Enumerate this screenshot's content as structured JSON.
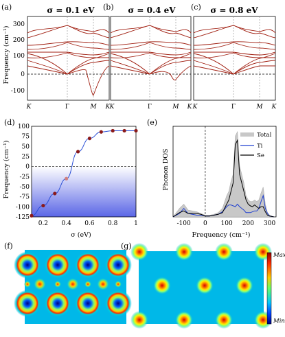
{
  "figure": {
    "panel_labels": [
      "(a)",
      "(b)",
      "(c)",
      "(d)",
      "(e)",
      "(f)",
      "(g)"
    ],
    "phonon_ylabel": "Frequency (cm⁻¹)",
    "phonon_yticks": [
      "300",
      "200",
      "100",
      "0",
      "-100"
    ],
    "kpoints": [
      "K",
      "Γ",
      "M",
      "K"
    ],
    "sigma_titles": [
      "σ = 0.1 eV",
      "σ = 0.4 eV",
      "σ = 0.8 eV"
    ],
    "d_ylabel": "Frequency (cm⁻¹)",
    "d_xlabel": "σ  (eV)",
    "d_xticks": [
      "0.2",
      "0.4",
      "0.6",
      "0.8",
      "1"
    ],
    "d_yticks": [
      "100",
      "75",
      "50",
      "25",
      "0",
      "-25",
      "-50",
      "-75",
      "-100",
      "-125"
    ],
    "e_ylabel": "Phonon DOS",
    "e_xlabel": "Frequency (cm⁻¹)",
    "e_xticks": [
      "-100",
      "0",
      "100",
      "200",
      "300"
    ],
    "legend": [
      "Total",
      "Ti",
      "Se"
    ],
    "colorbar_max": "Max",
    "colorbar_min": "Min"
  },
  "colors": {
    "band": "#a01e10",
    "line_d": "#2a4fd6",
    "marker_d": "#8b1a1a",
    "dos_total": "#c8c8c8",
    "dos_ti": "#1f3fd0",
    "dos_se": "#000000"
  },
  "chart_data": [
    {
      "type": "line",
      "panel": "(d)",
      "x": [
        0.1,
        0.2,
        0.3,
        0.4,
        0.5,
        0.6,
        0.7,
        0.8,
        0.9,
        1.0
      ],
      "y": [
        -122,
        -97,
        -67,
        -30,
        37,
        70,
        86,
        89,
        89,
        89
      ],
      "xlabel": "σ  (eV)",
      "ylabel": "Frequency (cm⁻¹)",
      "xlim": [
        0.1,
        1.0
      ],
      "ylim": [
        -125,
        100
      ]
    },
    {
      "type": "area",
      "panel": "(e)",
      "x": [
        -150,
        -120,
        -100,
        -80,
        -60,
        -40,
        -20,
        0,
        20,
        40,
        60,
        80,
        100,
        110,
        120,
        130,
        140,
        150,
        160,
        170,
        180,
        190,
        200,
        210,
        220,
        230,
        240,
        250,
        260,
        270,
        280,
        290,
        300,
        320
      ],
      "series": [
        {
          "name": "Total",
          "values": [
            0,
            0.1,
            0.15,
            0.08,
            0.07,
            0.06,
            0.04,
            0.02,
            0.02,
            0.03,
            0.05,
            0.1,
            0.25,
            0.3,
            0.42,
            0.5,
            0.95,
            1.0,
            0.6,
            0.5,
            0.4,
            0.25,
            0.2,
            0.18,
            0.18,
            0.2,
            0.18,
            0.2,
            0.28,
            0.35,
            0.15,
            0.05,
            0.02,
            0
          ]
        },
        {
          "name": "Ti",
          "values": [
            0,
            0.04,
            0.1,
            0.04,
            0.03,
            0.02,
            0.02,
            0.01,
            0.01,
            0.02,
            0.03,
            0.06,
            0.12,
            0.14,
            0.14,
            0.13,
            0.12,
            0.15,
            0.12,
            0.1,
            0.08,
            0.05,
            0.05,
            0.05,
            0.06,
            0.07,
            0.07,
            0.1,
            0.18,
            0.25,
            0.1,
            0.04,
            0.01,
            0
          ]
        },
        {
          "name": "Se",
          "values": [
            0,
            0.05,
            0.07,
            0.04,
            0.04,
            0.04,
            0.03,
            0.01,
            0.01,
            0.02,
            0.03,
            0.05,
            0.15,
            0.2,
            0.3,
            0.4,
            0.85,
            0.9,
            0.5,
            0.4,
            0.3,
            0.2,
            0.15,
            0.13,
            0.12,
            0.14,
            0.12,
            0.1,
            0.12,
            0.12,
            0.06,
            0.02,
            0.01,
            0
          ]
        }
      ],
      "xlabel": "Frequency (cm⁻¹)",
      "ylabel": "Phonon DOS",
      "xlim": [
        -150,
        330
      ]
    }
  ]
}
